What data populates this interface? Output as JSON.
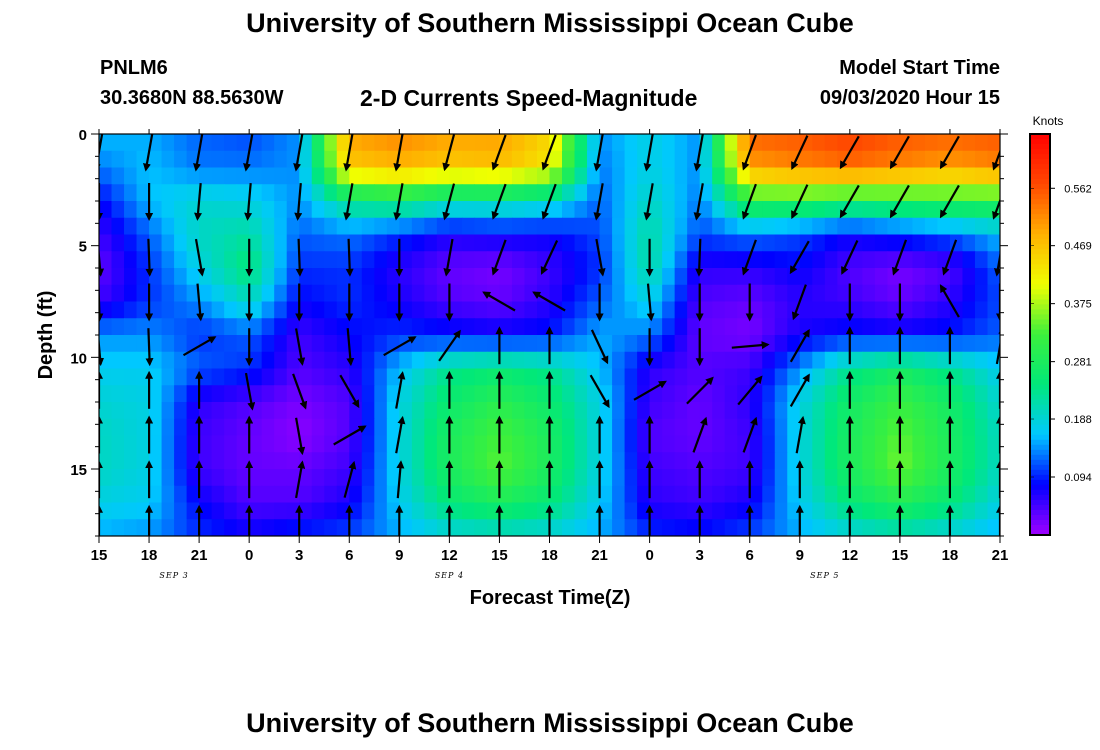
{
  "header": {
    "title": "University of Southern Mississippi Ocean Cube",
    "station_id": "PNLM6",
    "coordinates": "30.3680N 88.5630W",
    "subtitle": "2-D Currents Speed-Magnitude",
    "model_start_label": "Model Start Time",
    "model_start_value": "09/03/2020 Hour 15"
  },
  "footer": {
    "title": "University of Southern Mississippi Ocean Cube"
  },
  "chart_data": {
    "type": "heatmap",
    "xlabel": "Forecast Time(Z)",
    "ylabel": "Depth (ft)",
    "x_tick_labels": [
      "15",
      "18",
      "21",
      "0",
      "3",
      "6",
      "9",
      "12",
      "15",
      "18",
      "21",
      "0",
      "3",
      "6",
      "9",
      "12",
      "15",
      "18",
      "21"
    ],
    "x_range_hours": [
      0,
      54
    ],
    "day_labels": [
      {
        "label": "SEP 3",
        "hour": 4.5
      },
      {
        "label": "SEP 4",
        "hour": 21
      },
      {
        "label": "SEP 5",
        "hour": 43.5
      }
    ],
    "y_ticks": [
      0,
      5,
      10,
      15
    ],
    "ylim": [
      18,
      0
    ],
    "colorbar": {
      "title": "Knots",
      "ticks": [
        0.094,
        0.188,
        0.281,
        0.375,
        0.469,
        0.562
      ],
      "range": [
        0,
        0.65
      ],
      "colors": [
        "#a000ff",
        "#0000ff",
        "#00c8ff",
        "#00e87a",
        "#3cf03c",
        "#f0ff00",
        "#ffb000",
        "#ff4800",
        "#ff0000"
      ]
    },
    "depth_levels_ft": [
      0,
      1.5,
      3,
      4.5,
      6,
      7.5,
      9,
      10.5,
      12,
      13.5,
      15,
      16.5,
      18
    ],
    "time_hours": [
      0,
      3,
      6,
      9,
      12,
      15,
      18,
      21,
      24,
      27,
      30,
      33,
      36,
      39,
      42,
      45,
      48,
      51,
      54
    ],
    "speed_knots_rows": [
      [
        0.16,
        0.15,
        0.12,
        0.11,
        0.14,
        0.5,
        0.52,
        0.5,
        0.5,
        0.45,
        0.14,
        0.18,
        0.14,
        0.55,
        0.56,
        0.58,
        0.56,
        0.55,
        0.56
      ],
      [
        0.13,
        0.16,
        0.13,
        0.13,
        0.14,
        0.46,
        0.48,
        0.46,
        0.47,
        0.43,
        0.13,
        0.18,
        0.14,
        0.5,
        0.52,
        0.54,
        0.52,
        0.5,
        0.52
      ],
      [
        0.08,
        0.16,
        0.19,
        0.18,
        0.14,
        0.24,
        0.26,
        0.22,
        0.22,
        0.2,
        0.12,
        0.2,
        0.13,
        0.3,
        0.3,
        0.28,
        0.29,
        0.3,
        0.3
      ],
      [
        0.05,
        0.12,
        0.2,
        0.22,
        0.12,
        0.13,
        0.1,
        0.07,
        0.08,
        0.08,
        0.11,
        0.22,
        0.11,
        0.13,
        0.11,
        0.08,
        0.1,
        0.12,
        0.16
      ],
      [
        0.03,
        0.1,
        0.18,
        0.25,
        0.1,
        0.1,
        0.06,
        0.03,
        0.02,
        0.05,
        0.1,
        0.22,
        0.06,
        0.06,
        0.08,
        0.04,
        0.02,
        0.04,
        0.12
      ],
      [
        0.05,
        0.1,
        0.14,
        0.2,
        0.08,
        0.1,
        0.07,
        0.04,
        0.03,
        0.06,
        0.12,
        0.18,
        0.04,
        0.03,
        0.06,
        0.05,
        0.03,
        0.06,
        0.11
      ],
      [
        0.14,
        0.14,
        0.1,
        0.12,
        0.05,
        0.08,
        0.1,
        0.09,
        0.08,
        0.09,
        0.15,
        0.13,
        0.03,
        0.02,
        0.07,
        0.09,
        0.08,
        0.09,
        0.12
      ],
      [
        0.17,
        0.17,
        0.12,
        0.1,
        0.04,
        0.06,
        0.16,
        0.23,
        0.25,
        0.23,
        0.16,
        0.06,
        0.04,
        0.05,
        0.14,
        0.23,
        0.27,
        0.23,
        0.17
      ],
      [
        0.19,
        0.18,
        0.06,
        0.04,
        0.02,
        0.04,
        0.18,
        0.26,
        0.3,
        0.26,
        0.18,
        0.05,
        0.03,
        0.06,
        0.18,
        0.27,
        0.32,
        0.27,
        0.19
      ],
      [
        0.2,
        0.18,
        0.05,
        0.03,
        0.01,
        0.04,
        0.18,
        0.28,
        0.33,
        0.28,
        0.18,
        0.04,
        0.03,
        0.05,
        0.18,
        0.28,
        0.34,
        0.28,
        0.2
      ],
      [
        0.2,
        0.18,
        0.05,
        0.03,
        0.03,
        0.05,
        0.18,
        0.28,
        0.34,
        0.28,
        0.18,
        0.05,
        0.04,
        0.05,
        0.18,
        0.28,
        0.35,
        0.28,
        0.2
      ],
      [
        0.18,
        0.17,
        0.08,
        0.04,
        0.04,
        0.07,
        0.17,
        0.25,
        0.28,
        0.25,
        0.17,
        0.06,
        0.05,
        0.07,
        0.17,
        0.25,
        0.29,
        0.25,
        0.18
      ],
      [
        0.15,
        0.14,
        0.1,
        0.08,
        0.1,
        0.11,
        0.15,
        0.18,
        0.19,
        0.18,
        0.15,
        0.1,
        0.09,
        0.11,
        0.15,
        0.18,
        0.2,
        0.18,
        0.15
      ]
    ],
    "vector_depths_ft": [
      0.8,
      3,
      5.5,
      7.5,
      9.5,
      11.5,
      13.5,
      15.5,
      17.5
    ],
    "vector_directions_deg": [
      [
        190,
        190,
        190,
        190,
        190,
        190,
        190,
        195,
        200,
        200,
        190,
        190,
        190,
        200,
        205,
        210,
        210,
        210,
        200
      ],
      [
        180,
        180,
        185,
        185,
        185,
        190,
        190,
        195,
        200,
        200,
        190,
        190,
        190,
        200,
        205,
        210,
        210,
        210,
        200
      ],
      [
        175,
        178,
        170,
        180,
        178,
        178,
        180,
        190,
        200,
        205,
        170,
        180,
        182,
        200,
        210,
        205,
        200,
        200,
        190
      ],
      [
        178,
        180,
        175,
        180,
        180,
        180,
        180,
        180,
        300,
        300,
        180,
        175,
        180,
        180,
        200,
        180,
        180,
        330,
        180
      ],
      [
        175,
        178,
        60,
        180,
        170,
        175,
        60,
        35,
        0,
        0,
        155,
        180,
        180,
        85,
        30,
        0,
        0,
        0,
        10
      ],
      [
        0,
        0,
        0,
        170,
        160,
        150,
        10,
        0,
        0,
        0,
        150,
        60,
        45,
        40,
        30,
        0,
        0,
        0,
        0
      ],
      [
        0,
        0,
        0,
        0,
        170,
        60,
        10,
        0,
        0,
        0,
        0,
        0,
        20,
        20,
        10,
        0,
        0,
        0,
        0
      ],
      [
        0,
        0,
        0,
        0,
        10,
        15,
        5,
        0,
        0,
        0,
        0,
        0,
        0,
        0,
        0,
        0,
        0,
        0,
        0
      ],
      [
        0,
        0,
        0,
        0,
        0,
        0,
        0,
        0,
        0,
        0,
        0,
        0,
        0,
        0,
        0,
        0,
        0,
        0,
        0
      ]
    ]
  }
}
